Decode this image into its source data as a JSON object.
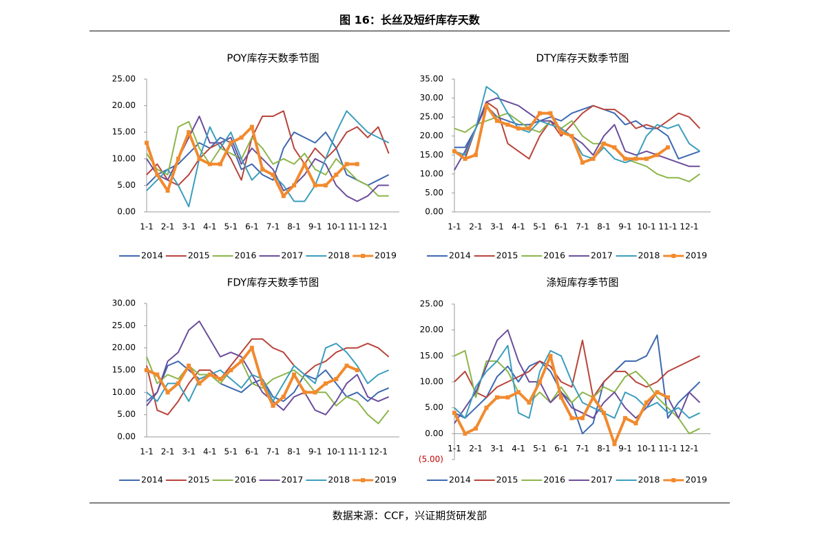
{
  "title": "图 16：长丝及短纤库存天数",
  "source": "数据来源：CCF，兴证期货研发部",
  "chart_data": [
    {
      "type": "line",
      "title": "POY库存天数季节图",
      "legend": "bottom",
      "categories": [
        "1-1",
        null,
        "2-1",
        null,
        "3-1",
        null,
        "4-1",
        null,
        "5-1",
        null,
        "6-1",
        null,
        "7-1",
        null,
        "8-1",
        null,
        "9-1",
        null,
        "10-1",
        null,
        "11-1",
        null,
        "12-1",
        null
      ],
      "ylim": [
        0,
        25
      ],
      "yticks": [
        {
          "value": 0,
          "label": "0.00"
        },
        {
          "value": 5,
          "label": "5.00"
        },
        {
          "value": 10,
          "label": "10.00"
        },
        {
          "value": 15,
          "label": "15.00"
        },
        {
          "value": 20,
          "label": "20.00"
        },
        {
          "value": 25,
          "label": "25.00"
        }
      ],
      "series": [
        {
          "name": "2014",
          "color": "#3d68b0",
          "values": [
            5,
            7,
            8,
            9,
            11,
            13,
            12,
            14,
            13,
            8,
            9,
            7,
            6,
            12,
            15,
            14,
            13,
            15,
            12,
            7,
            6,
            5,
            6,
            7
          ]
        },
        {
          "name": "2015",
          "color": "#b8433a",
          "values": [
            7,
            9,
            6,
            5,
            7,
            10,
            12,
            13,
            10,
            6,
            14,
            18,
            18,
            19,
            12,
            9,
            12,
            10,
            12,
            15,
            16,
            14,
            16,
            11
          ]
        },
        {
          "name": "2016",
          "color": "#8cb54a",
          "values": [
            11,
            8,
            7,
            16,
            17,
            12,
            9,
            12,
            11,
            10,
            14,
            12,
            9,
            10,
            9,
            11,
            8,
            7,
            10,
            8,
            6,
            5,
            3,
            3
          ]
        },
        {
          "name": "2017",
          "color": "#6b4c9a",
          "values": [
            10,
            7,
            6,
            10,
            14,
            18,
            13,
            13,
            14,
            9,
            12,
            10,
            8,
            4,
            5,
            7,
            10,
            9,
            5,
            3,
            2,
            3,
            5,
            5
          ]
        },
        {
          "name": "2018",
          "color": "#3a9dbd",
          "values": [
            4,
            6,
            8,
            5,
            1,
            10,
            16,
            12,
            15,
            10,
            6,
            8,
            7,
            5,
            2,
            2,
            5,
            10,
            15,
            19,
            17,
            15,
            14,
            13
          ]
        },
        {
          "name": "2019",
          "color": "#f28a2e",
          "marker": "square",
          "values": [
            13,
            7,
            4,
            10,
            15,
            10,
            9,
            9,
            13,
            14,
            16,
            8,
            7,
            3,
            5,
            9,
            5,
            5,
            7,
            9,
            9,
            null,
            null,
            null
          ]
        }
      ]
    },
    {
      "type": "line",
      "title": "DTY库存天数季节图",
      "legend": "bottom",
      "categories": [
        "1-1",
        null,
        "2-1",
        null,
        "3-1",
        null,
        "4-1",
        null,
        "5-1",
        null,
        "6-1",
        null,
        "7-1",
        null,
        "8-1",
        null,
        "9-1",
        null,
        "10-1",
        null,
        "11-1",
        null,
        "12-1",
        null
      ],
      "ylim": [
        0,
        35
      ],
      "yticks": [
        {
          "value": 0,
          "label": "0.00"
        },
        {
          "value": 5,
          "label": "5.00"
        },
        {
          "value": 10,
          "label": "10.00"
        },
        {
          "value": 15,
          "label": "15.00"
        },
        {
          "value": 20,
          "label": "20.00"
        },
        {
          "value": 25,
          "label": "25.00"
        },
        {
          "value": 30,
          "label": "30.00"
        },
        {
          "value": 35,
          "label": "35.00"
        }
      ],
      "series": [
        {
          "name": "2014",
          "color": "#3d68b0",
          "values": [
            17,
            17,
            22,
            28,
            25,
            24,
            23,
            23,
            24,
            25,
            24,
            26,
            27,
            28,
            27,
            26,
            23,
            24,
            22,
            22,
            20,
            14,
            15,
            16
          ]
        },
        {
          "name": "2015",
          "color": "#b8433a",
          "values": [
            16,
            14,
            22,
            29,
            27,
            18,
            16,
            14,
            20,
            24,
            20,
            23,
            26,
            28,
            27,
            27,
            25,
            22,
            23,
            22,
            24,
            26,
            25,
            22
          ]
        },
        {
          "name": "2016",
          "color": "#8cb54a",
          "values": [
            22,
            21,
            23,
            24,
            25,
            26,
            24,
            22,
            21,
            24,
            22,
            24,
            20,
            18,
            18,
            17,
            14,
            13,
            12,
            10,
            9,
            9,
            8,
            10
          ]
        },
        {
          "name": "2017",
          "color": "#6b4c9a",
          "values": [
            11,
            16,
            22,
            29,
            30,
            29,
            28,
            26,
            24,
            24,
            22,
            20,
            18,
            15,
            20,
            23,
            16,
            15,
            16,
            15,
            14,
            13,
            12,
            12
          ]
        },
        {
          "name": "2018",
          "color": "#3a9dbd",
          "values": [
            16,
            15,
            22,
            33,
            31,
            26,
            22,
            21,
            24,
            23,
            22,
            20,
            15,
            14,
            17,
            14,
            13,
            14,
            20,
            23,
            22,
            23,
            18,
            16
          ]
        },
        {
          "name": "2019",
          "color": "#f28a2e",
          "marker": "square",
          "values": [
            16,
            14,
            15,
            28,
            24,
            23,
            22,
            22,
            26,
            26,
            21,
            20,
            13,
            14,
            18,
            17,
            14,
            14,
            14,
            15,
            17,
            null,
            null,
            null
          ]
        }
      ]
    },
    {
      "type": "line",
      "title": "FDY库存天数季节图",
      "legend": "bottom",
      "categories": [
        "1-1",
        null,
        "2-1",
        null,
        "3-1",
        null,
        "4-1",
        null,
        "5-1",
        null,
        "6-1",
        null,
        "7-1",
        null,
        "8-1",
        null,
        "9-1",
        null,
        "10-1",
        null,
        "11-1",
        null,
        "12-1",
        null
      ],
      "ylim": [
        0,
        30
      ],
      "yticks": [
        {
          "value": 0,
          "label": "0.00"
        },
        {
          "value": 5,
          "label": "5.00"
        },
        {
          "value": 10,
          "label": "10.00"
        },
        {
          "value": 15,
          "label": "15.00"
        },
        {
          "value": 20,
          "label": "20.00"
        },
        {
          "value": 25,
          "label": "25.00"
        },
        {
          "value": 30,
          "label": "30.00"
        }
      ],
      "series": [
        {
          "name": "2014",
          "color": "#3d68b0",
          "values": [
            8,
            10,
            16,
            17,
            15,
            13,
            14,
            12,
            11,
            10,
            12,
            13,
            9,
            8,
            10,
            14,
            13,
            15,
            12,
            9,
            10,
            8,
            10,
            11
          ]
        },
        {
          "name": "2015",
          "color": "#b8433a",
          "values": [
            16,
            6,
            5,
            8,
            12,
            15,
            15,
            13,
            16,
            19,
            22,
            22,
            20,
            19,
            16,
            14,
            16,
            17,
            19,
            20,
            20,
            21,
            20,
            18
          ]
        },
        {
          "name": "2016",
          "color": "#8cb54a",
          "values": [
            18,
            12,
            14,
            13,
            16,
            14,
            14,
            12,
            15,
            17,
            12,
            11,
            13,
            14,
            15,
            13,
            10,
            10,
            7,
            9,
            8,
            5,
            3,
            6
          ]
        },
        {
          "name": "2017",
          "color": "#6b4c9a",
          "values": [
            7,
            10,
            17,
            19,
            24,
            26,
            22,
            18,
            19,
            18,
            14,
            10,
            8,
            6,
            9,
            10,
            6,
            5,
            8,
            12,
            14,
            9,
            8,
            9
          ]
        },
        {
          "name": "2018",
          "color": "#3a9dbd",
          "values": [
            10,
            8,
            12,
            12,
            8,
            13,
            14,
            15,
            13,
            11,
            14,
            13,
            8,
            12,
            16,
            14,
            12,
            20,
            21,
            19,
            16,
            12,
            14,
            15
          ]
        },
        {
          "name": "2019",
          "color": "#f28a2e",
          "marker": "square",
          "values": [
            15,
            14,
            10,
            12,
            16,
            12,
            14,
            13,
            15,
            17,
            20,
            12,
            7,
            9,
            14,
            10,
            10,
            12,
            13,
            16,
            15,
            null,
            null,
            null
          ]
        }
      ]
    },
    {
      "type": "line",
      "title": "涤短库存季节图",
      "legend": "bottom",
      "categories": [
        "1-1",
        null,
        "2-1",
        null,
        "3-1",
        null,
        "4-1",
        null,
        "5-1",
        null,
        "6-1",
        null,
        "7-1",
        null,
        "8-1",
        null,
        "9-1",
        null,
        "10-1",
        null,
        "11-1",
        null,
        "12-1",
        null
      ],
      "ylim": [
        -5,
        25
      ],
      "yticks": [
        {
          "value": -5,
          "label": "(5.00)"
        },
        {
          "value": 0,
          "label": "0.00"
        },
        {
          "value": 5,
          "label": "5.00"
        },
        {
          "value": 10,
          "label": "10.00"
        },
        {
          "value": 15,
          "label": "15.00"
        },
        {
          "value": 20,
          "label": "20.00"
        },
        {
          "value": 25,
          "label": "25.00"
        }
      ],
      "series": [
        {
          "name": "2014",
          "color": "#3d68b0",
          "values": [
            4,
            3,
            5,
            7,
            11,
            13,
            10,
            13,
            14,
            12,
            8,
            6,
            0,
            2,
            10,
            12,
            14,
            14,
            15,
            19,
            3,
            6,
            8,
            10
          ]
        },
        {
          "name": "2015",
          "color": "#b8433a",
          "values": [
            10,
            12,
            8,
            7,
            9,
            10,
            11,
            12,
            14,
            13,
            10,
            9,
            18,
            7,
            10,
            12,
            12,
            10,
            9,
            10,
            12,
            13,
            14,
            15
          ]
        },
        {
          "name": "2016",
          "color": "#8cb54a",
          "values": [
            15,
            16,
            7,
            14,
            14,
            12,
            8,
            6,
            8,
            6,
            9,
            6,
            8,
            7,
            9,
            8,
            11,
            12,
            10,
            7,
            5,
            3,
            0,
            1
          ]
        },
        {
          "name": "2017",
          "color": "#6b4c9a",
          "values": [
            2,
            5,
            8,
            13,
            18,
            20,
            14,
            10,
            10,
            6,
            8,
            5,
            4,
            3,
            6,
            8,
            5,
            3,
            5,
            8,
            7,
            3,
            8,
            6
          ]
        },
        {
          "name": "2018",
          "color": "#3a9dbd",
          "values": [
            5,
            3,
            9,
            12,
            14,
            17,
            4,
            3,
            12,
            16,
            15,
            10,
            6,
            5,
            4,
            3,
            8,
            7,
            5,
            6,
            4,
            5,
            3,
            4
          ]
        },
        {
          "name": "2019",
          "color": "#f28a2e",
          "marker": "square",
          "values": [
            4,
            0,
            1,
            5,
            7,
            7,
            8,
            6,
            10,
            15,
            7,
            3,
            3,
            7,
            4,
            -2,
            3,
            2,
            6,
            8,
            7,
            null,
            null,
            null
          ]
        }
      ]
    }
  ]
}
